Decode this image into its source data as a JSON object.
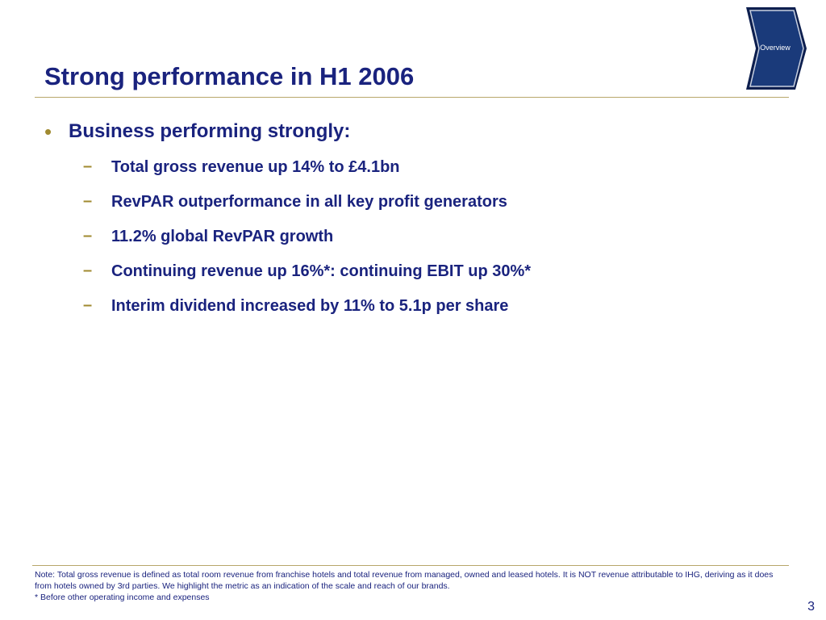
{
  "slide": {
    "title": "Strong performance in H1 2006",
    "page_number": "3"
  },
  "nav": {
    "label": "Overview",
    "icon": "chevron-arrow-shape",
    "color": "#1a3a7a"
  },
  "content": {
    "heading": "Business performing strongly:",
    "points": [
      "Total gross revenue up 14% to £4.1bn",
      "RevPAR outperformance in all key profit generators",
      "11.2% global RevPAR growth",
      "Continuing revenue up 16%*: continuing EBIT up 30%*",
      "Interim dividend increased by 11% to 5.1p per share"
    ]
  },
  "footer": {
    "note": "Note: Total gross revenue is defined as total room revenue from franchise hotels and total revenue from managed, owned and leased hotels. It is NOT revenue attributable to IHG, deriving as it does from hotels owned by 3rd parties. We highlight the metric as an indication of the scale and reach of our brands.",
    "asterisk": "* Before other operating income and expenses"
  },
  "colors": {
    "title": "#1a237e",
    "accent": "#a08a30",
    "rule": "#b8a76a"
  }
}
